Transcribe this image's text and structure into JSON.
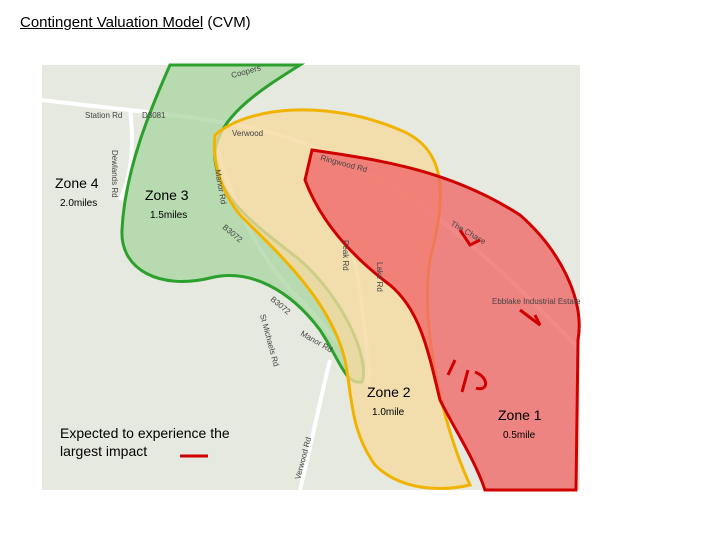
{
  "title": {
    "main": "Contingent Valuation Model",
    "abbr": "(CVM)"
  },
  "zones": [
    {
      "label": "Zone 4",
      "distance": "2.0miles"
    },
    {
      "label": "Zone 3",
      "distance": "1.5miles"
    },
    {
      "label": "Zone 2",
      "distance": "1.0mile"
    },
    {
      "label": "Zone 1",
      "distance": "0.5mile"
    }
  ],
  "legend": {
    "text": "Expected to experience the largest impact"
  },
  "map_labels": [
    "Station Rd",
    "D3081",
    "Verwood",
    "Ringwood Rd",
    "Manor Rd",
    "B3072",
    "Dewlands Rd",
    "Coopers",
    "Peak Rd",
    "Lake Rd",
    "The Chase",
    "Ebblake Industrial Estate",
    "Verwood Rd",
    "St Michaels Rd",
    "Manor Rd",
    "B3072"
  ]
}
